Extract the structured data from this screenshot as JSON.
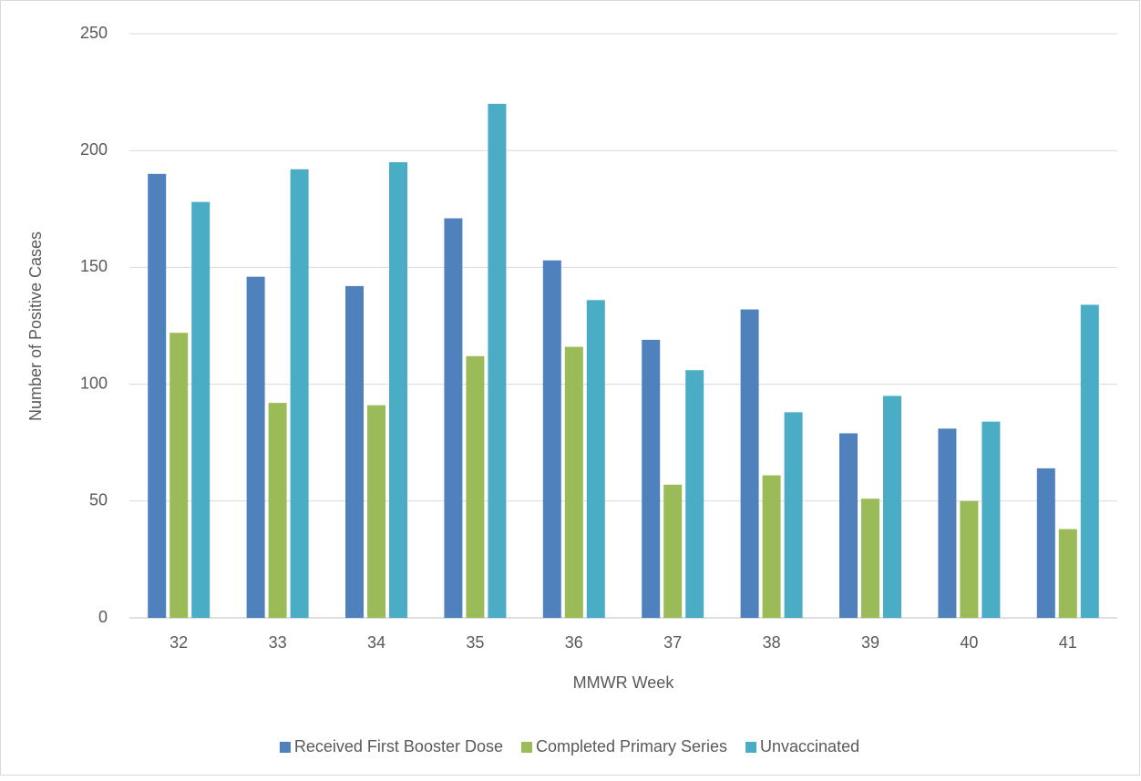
{
  "chart_data": {
    "type": "bar",
    "x_label": "MMWR Week",
    "y_label": "Number of Positive Cases",
    "categories": [
      "32",
      "33",
      "34",
      "35",
      "36",
      "37",
      "38",
      "39",
      "40",
      "41"
    ],
    "series": [
      {
        "name": "Received First Booster Dose",
        "color": "#4f81bd",
        "values": [
          190,
          146,
          142,
          171,
          153,
          119,
          132,
          79,
          81,
          64
        ]
      },
      {
        "name": "Completed Primary Series",
        "color": "#9bbb59",
        "values": [
          122,
          92,
          91,
          112,
          116,
          57,
          61,
          51,
          50,
          38
        ]
      },
      {
        "name": "Unvaccinated",
        "color": "#4bacc6",
        "values": [
          178,
          192,
          195,
          220,
          136,
          106,
          88,
          95,
          84,
          134
        ]
      }
    ],
    "ylim": [
      0,
      250
    ],
    "yticks": [
      0,
      50,
      100,
      150,
      200,
      250
    ],
    "grid": true,
    "legend": "bottom"
  }
}
